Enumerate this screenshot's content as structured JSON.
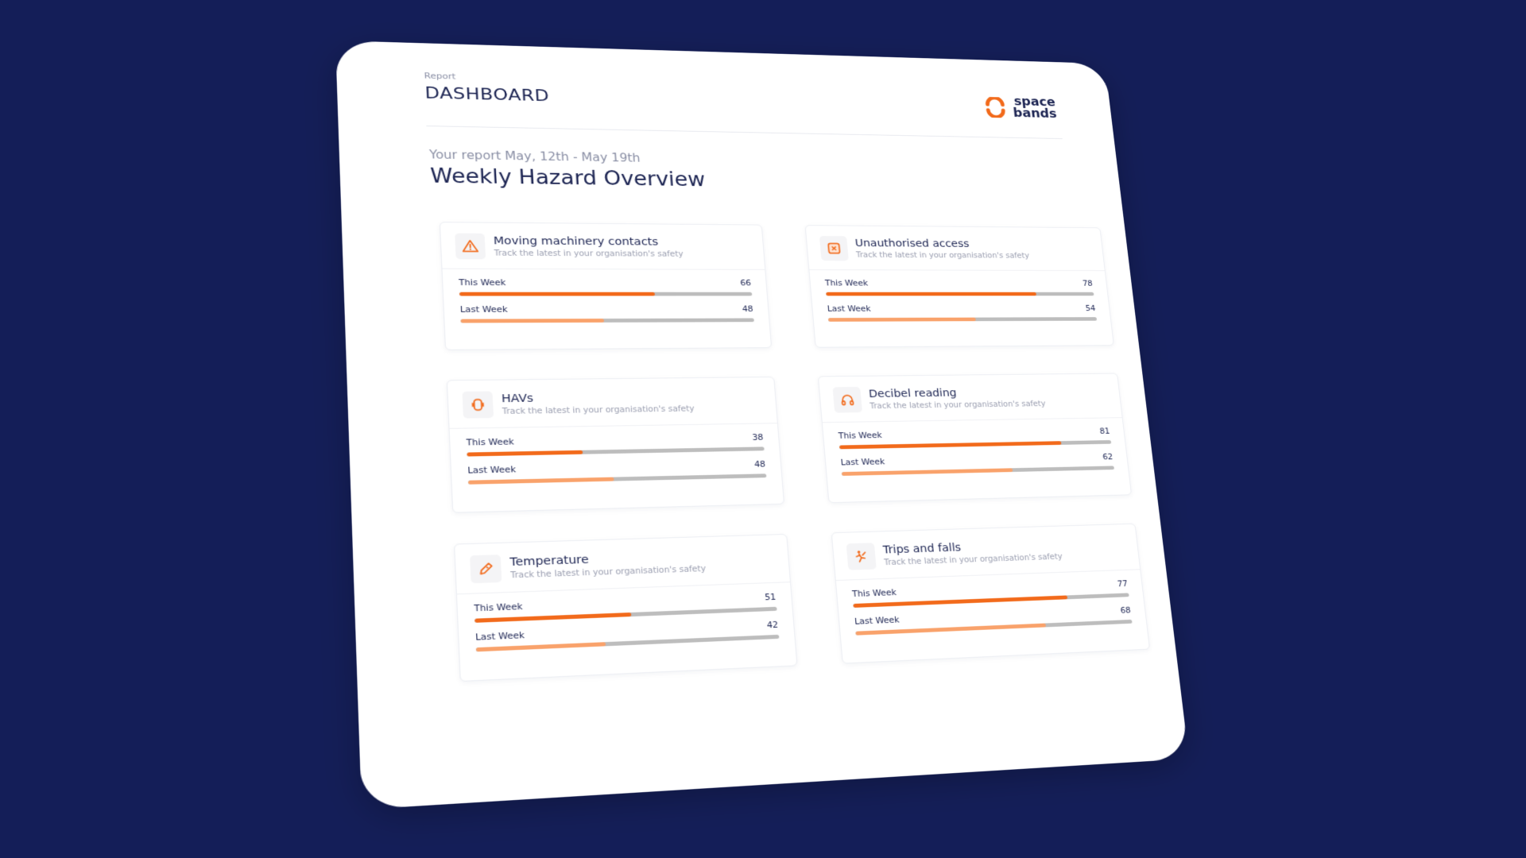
{
  "header": {
    "eyebrow": "Report",
    "title": "DASHBOARD",
    "logo_line1": "space",
    "logo_line2": "bands"
  },
  "report": {
    "subtitle": "Your report May, 12th - May 19th",
    "title": "Weekly Hazard Overview"
  },
  "colors": {
    "background": "#141e58",
    "this_week": "#f26a1b",
    "last_week": "#f9a26b",
    "track": "#bdbdbd",
    "text": "#1d2553"
  },
  "scale_max": 100,
  "cards": [
    {
      "title": "Moving machinery contacts",
      "desc": "Track the latest in your organisation's safety",
      "icon": "warning-icon",
      "this_label": "This Week",
      "this_value": 66,
      "last_label": "Last Week",
      "last_value": 48
    },
    {
      "title": "Unauthorised access",
      "desc": "Track the latest in your organisation's safety",
      "icon": "x-square-icon",
      "this_label": "This Week",
      "this_value": 78,
      "last_label": "Last Week",
      "last_value": 54
    },
    {
      "title": "HAVs",
      "desc": "Track the latest in your organisation's safety",
      "icon": "hand-vibration-icon",
      "this_label": "This Week",
      "this_value": 38,
      "last_label": "Last Week",
      "last_value": 48
    },
    {
      "title": "Decibel reading",
      "desc": "Track the latest in your organisation's safety",
      "icon": "headphones-icon",
      "this_label": "This Week",
      "this_value": 81,
      "last_label": "Last Week",
      "last_value": 62
    },
    {
      "title": "Temperature",
      "desc": "Track the latest in your organisation's safety",
      "icon": "thermometer-icon",
      "this_label": "This Week",
      "this_value": 51,
      "last_label": "Last Week",
      "last_value": 42
    },
    {
      "title": "Trips and falls",
      "desc": "Track the latest in your organisation's safety",
      "icon": "falling-person-icon",
      "this_label": "This Week",
      "this_value": 77,
      "last_label": "Last Week",
      "last_value": 68
    }
  ]
}
